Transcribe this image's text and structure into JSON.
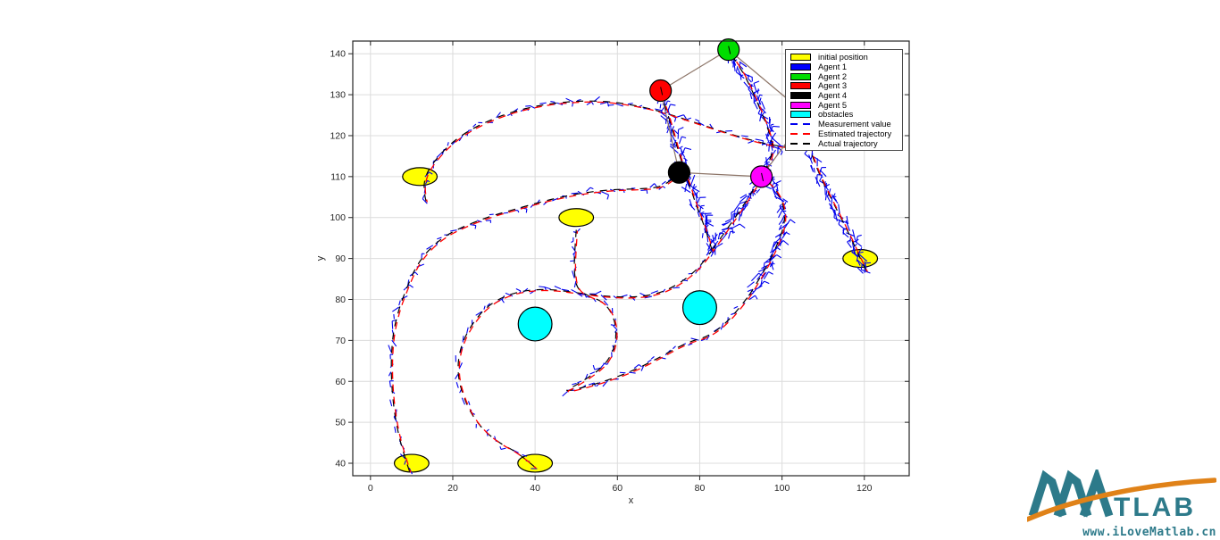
{
  "figure": {
    "background": "#ffffff",
    "frame_color": "#262626",
    "grid_color": "#dcdcdc",
    "tick_label_color": "#262626",
    "link_color": "#8d7568"
  },
  "axes": {
    "xlabel": "x",
    "ylabel": "y"
  },
  "legend": {
    "entries": [
      {
        "label": "initial position",
        "swatch": "patch",
        "color": "#ffff00"
      },
      {
        "label": "Agent 1",
        "swatch": "patch",
        "color": "#0000ff"
      },
      {
        "label": "Agent 2",
        "swatch": "patch",
        "color": "#00dd00"
      },
      {
        "label": "Agent 3",
        "swatch": "patch",
        "color": "#ff0000"
      },
      {
        "label": "Agent 4",
        "swatch": "patch",
        "color": "#000000"
      },
      {
        "label": "Agent 5",
        "swatch": "patch",
        "color": "#ff00ff"
      },
      {
        "label": "obstacles",
        "swatch": "patch",
        "color": "#00ffff"
      },
      {
        "label": "Measurement value",
        "swatch": "line",
        "color": "#0000ee"
      },
      {
        "label": "Estimated trajectory",
        "swatch": "line",
        "color": "#ff0000"
      },
      {
        "label": "Actual trajectory",
        "swatch": "line",
        "color": "#000000"
      }
    ]
  },
  "chart_data": {
    "type": "line",
    "title": "",
    "xlabel": "x",
    "ylabel": "y",
    "xlim": [
      -4.3,
      130.9
    ],
    "ylim": [
      36.95,
      143.1
    ],
    "x_ticks": [
      0,
      20,
      40,
      60,
      80,
      100,
      120
    ],
    "y_ticks": [
      40,
      50,
      60,
      70,
      80,
      90,
      100,
      110,
      120,
      130,
      140
    ],
    "grid": true,
    "legend_position": "northeast",
    "line_styles": {
      "measurement": {
        "color": "#0000ee",
        "style": "noisy-dashes"
      },
      "estimated": {
        "color": "#ff0000",
        "style": "dashed"
      },
      "actual": {
        "color": "#000000",
        "style": "dashed"
      }
    },
    "initial_positions": {
      "shape": "ellipse",
      "color": "#ffff00",
      "rx": 4.2,
      "ry": 2.0,
      "centers": [
        [
          12,
          110
        ],
        [
          50,
          100
        ],
        [
          119,
          90
        ],
        [
          10,
          40
        ],
        [
          40,
          40
        ]
      ]
    },
    "obstacles": {
      "shape": "circle",
      "color": "#00ffff",
      "r": 4.1,
      "centers": [
        [
          40,
          74
        ],
        [
          80,
          78
        ]
      ]
    },
    "agents": [
      {
        "name": "Agent 1",
        "color": "#0000ff",
        "start": [
          119,
          90
        ],
        "final": [
          106,
          125
        ],
        "final_visible": false
      },
      {
        "name": "Agent 2",
        "color": "#00dd00",
        "start": [
          40,
          40
        ],
        "final": [
          87,
          141
        ],
        "final_visible": true
      },
      {
        "name": "Agent 3",
        "color": "#ff0000",
        "start": [
          12,
          110
        ],
        "final": [
          70.5,
          131
        ],
        "final_visible": true
      },
      {
        "name": "Agent 4",
        "color": "#000000",
        "start": [
          10,
          40
        ],
        "final": [
          75,
          111
        ],
        "final_visible": true
      },
      {
        "name": "Agent 5",
        "color": "#ff00ff",
        "start": [
          50,
          100
        ],
        "final": [
          95,
          110
        ],
        "final_visible": true
      }
    ],
    "formation_links": [
      [
        "Agent 2",
        "Agent 3"
      ],
      [
        "Agent 3",
        "Agent 4"
      ],
      [
        "Agent 4",
        "Agent 5"
      ],
      [
        "Agent 5",
        "Agent 1"
      ],
      [
        "Agent 2",
        "Agent 1"
      ]
    ],
    "trajectories": [
      {
        "agent": "Agent 4",
        "segments": [
          {
            "density": "medium",
            "pts": [
              [
                9.5,
                38
              ],
              [
                7.5,
                44
              ],
              [
                6,
                51
              ],
              [
                5.2,
                58
              ],
              [
                5,
                65
              ],
              [
                5.5,
                72
              ],
              [
                7,
                78
              ],
              [
                8.5,
                82
              ],
              [
                11,
                88
              ],
              [
                14,
                92
              ],
              [
                18,
                95.5
              ],
              [
                23,
                98
              ],
              [
                29,
                100.3
              ],
              [
                35,
                102
              ],
              [
                42,
                104
              ],
              [
                50,
                105.8
              ],
              [
                58,
                106.8
              ],
              [
                65,
                107
              ],
              [
                70,
                107.3
              ],
              [
                73,
                109
              ],
              [
                75,
                111
              ]
            ]
          }
        ]
      },
      {
        "agent": "Agent 2",
        "segments": [
          {
            "density": "medium",
            "pts": [
              [
                40,
                39
              ],
              [
                36,
                42.5
              ],
              [
                31.5,
                44.8
              ],
              [
                27.5,
                48
              ],
              [
                24.5,
                52
              ],
              [
                22.5,
                56.5
              ],
              [
                21.3,
                61
              ],
              [
                21.3,
                65.5
              ],
              [
                22.5,
                70
              ],
              [
                25,
                74.5
              ],
              [
                28.5,
                78.5
              ],
              [
                33,
                81
              ],
              [
                38,
                82.3
              ],
              [
                44,
                82.5
              ],
              [
                51,
                81.5
              ],
              [
                58,
                80.7
              ],
              [
                64,
                80.5
              ],
              [
                69.5,
                81.3
              ],
              [
                73.5,
                83
              ],
              [
                77,
                85.3
              ],
              [
                80,
                88
              ],
              [
                83,
                92
              ]
            ]
          },
          {
            "density": "dense",
            "pts": [
              [
                83,
                92
              ],
              [
                86.5,
                97
              ],
              [
                90,
                102
              ],
              [
                93.5,
                107.5
              ],
              [
                96.5,
                112.5
              ],
              [
                98,
                117
              ],
              [
                96.5,
                122
              ],
              [
                94.5,
                127
              ],
              [
                92.5,
                131.5
              ],
              [
                90.5,
                135.5
              ],
              [
                88.5,
                138.5
              ],
              [
                87,
                141
              ]
            ]
          }
        ]
      },
      {
        "agent": "Agent 3",
        "segments": [
          {
            "density": "medium",
            "pts": [
              [
                13.5,
                104
              ],
              [
                12.8,
                107
              ],
              [
                13.5,
                110.5
              ],
              [
                15,
                113
              ],
              [
                17,
                115.5
              ],
              [
                20,
                118.5
              ],
              [
                24,
                121.3
              ],
              [
                29,
                123.8
              ],
              [
                35,
                126
              ],
              [
                42,
                127.6
              ],
              [
                49,
                128.4
              ],
              [
                56,
                128.5
              ],
              [
                62,
                127.8
              ],
              [
                68,
                126.6
              ],
              [
                74,
                124.8
              ],
              [
                81,
                122.5
              ],
              [
                88,
                120.2
              ],
              [
                94,
                118.5
              ],
              [
                99,
                117.4
              ],
              [
                104,
                117.2
              ]
            ]
          },
          {
            "density": "dense",
            "pts": [
              [
                83,
                92
              ],
              [
                81.5,
                97
              ],
              [
                79.5,
                102
              ],
              [
                78,
                106.5
              ],
              [
                76.5,
                111
              ],
              [
                75,
                115.5
              ],
              [
                73.8,
                120
              ],
              [
                72.5,
                124.5
              ],
              [
                71.3,
                128
              ],
              [
                70.5,
                131
              ]
            ]
          }
        ]
      },
      {
        "agent": "Agent 5",
        "segments": [
          {
            "density": "medium",
            "pts": [
              [
                50,
                97
              ],
              [
                49.6,
                91.5
              ],
              [
                49.5,
                86.5
              ],
              [
                50.2,
                82.5
              ],
              [
                53,
                80.8
              ],
              [
                56.5,
                79.5
              ],
              [
                58.8,
                76.5
              ],
              [
                59.8,
                72.5
              ],
              [
                59.3,
                68
              ],
              [
                57,
                64
              ],
              [
                53.5,
                61.3
              ],
              [
                49.5,
                58.8
              ],
              [
                47,
                57.5
              ],
              [
                50.5,
                58.2
              ],
              [
                55.5,
                59.6
              ],
              [
                60.5,
                61.3
              ],
              [
                65.5,
                63.4
              ],
              [
                70.5,
                66
              ],
              [
                75,
                68.5
              ],
              [
                78.5,
                70
              ],
              [
                81.5,
                70.8
              ],
              [
                85,
                73
              ],
              [
                88.5,
                76.5
              ],
              [
                92,
                81
              ]
            ]
          },
          {
            "density": "dense",
            "pts": [
              [
                92,
                81
              ],
              [
                94.8,
                85.5
              ],
              [
                97.3,
                90
              ],
              [
                99.3,
                94.5
              ],
              [
                100.8,
                99
              ],
              [
                100.3,
                103.5
              ],
              [
                98.5,
                106.8
              ],
              [
                96.5,
                108.8
              ],
              [
                95,
                110
              ]
            ]
          }
        ]
      },
      {
        "agent": "Agent 1",
        "segments": [
          {
            "density": "dense",
            "pts": [
              [
                120.5,
                87
              ],
              [
                119,
                90
              ],
              [
                117,
                94.5
              ],
              [
                114.8,
                99
              ],
              [
                112.5,
                103.5
              ],
              [
                110.5,
                107.5
              ],
              [
                108.7,
                111.5
              ],
              [
                107.2,
                115.5
              ],
              [
                106.3,
                119.5
              ],
              [
                106,
                123
              ]
            ]
          }
        ]
      }
    ]
  },
  "logo": {
    "brand_letters": "TLAB",
    "url": "www.iLoveMatlab.cn",
    "teal": "#2d7a8a",
    "orange": "#e08218"
  }
}
